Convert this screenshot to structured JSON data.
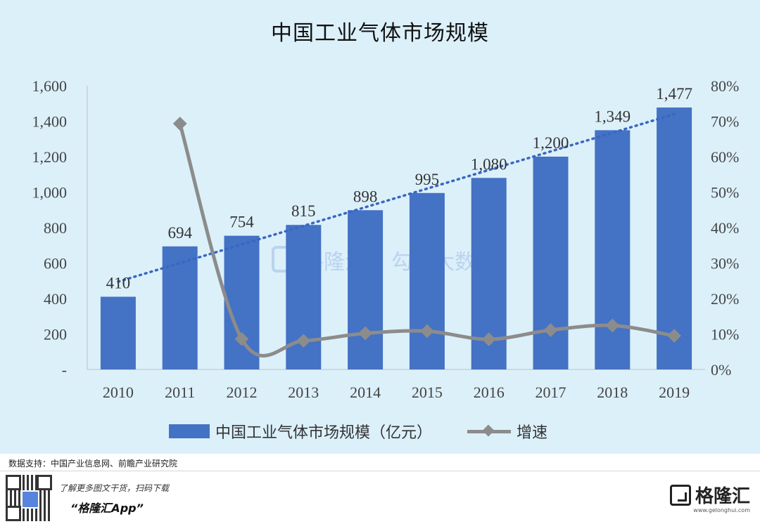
{
  "header": {
    "title": "中国工业气体市场规模"
  },
  "chart_data": {
    "type": "bar",
    "title": "中国工业气体市场规模",
    "categories": [
      "2010",
      "2011",
      "2012",
      "2013",
      "2014",
      "2015",
      "2016",
      "2017",
      "2018",
      "2019"
    ],
    "series": [
      {
        "name": "中国工业气体市场规模（亿元）",
        "type": "bar",
        "axis": "left",
        "values": [
          410,
          694,
          754,
          815,
          898,
          995,
          1080,
          1200,
          1349,
          1477
        ],
        "labels": [
          "410",
          "694",
          "754",
          "815",
          "898",
          "995",
          "1,080",
          "1,200",
          "1,349",
          "1,477"
        ],
        "color": "#4472c4"
      },
      {
        "name": "增速",
        "type": "line",
        "axis": "right",
        "values": [
          null,
          69.3,
          8.6,
          8.1,
          10.2,
          10.8,
          8.5,
          11.1,
          12.4,
          9.5
        ],
        "unit": "%",
        "color": "#8c8c8c"
      }
    ],
    "trendline": {
      "type": "linear",
      "style": "dotted",
      "color": "#3a66c4"
    },
    "y_left": {
      "ylim": [
        0,
        1600
      ],
      "ticks": [
        0,
        200,
        400,
        600,
        800,
        1000,
        1200,
        1400,
        1600
      ],
      "tick_labels": [
        "-",
        "200",
        "400",
        "600",
        "800",
        "1,000",
        "1,200",
        "1,400",
        "1,600"
      ]
    },
    "y_right": {
      "ylim": [
        0,
        80
      ],
      "ticks": [
        0,
        10,
        20,
        30,
        40,
        50,
        60,
        70,
        80
      ],
      "tick_labels": [
        "0%",
        "10%",
        "20%",
        "30%",
        "40%",
        "50%",
        "60%",
        "70%",
        "80%"
      ]
    },
    "grid": false,
    "legend": "bottom",
    "watermarks": [
      "格隆汇",
      "勾股大数据"
    ]
  },
  "legend": {
    "bar_label": "中国工业气体市场规模（亿元）",
    "line_label": "增速"
  },
  "footer": {
    "source": "数据支持：中国产业信息网、前瞻产业研究院",
    "promo": "了解更多图文干货，扫码下载",
    "app_name": "“格隆汇App”",
    "brand": "格隆汇",
    "brand_url": "www.gelonghui.com"
  }
}
